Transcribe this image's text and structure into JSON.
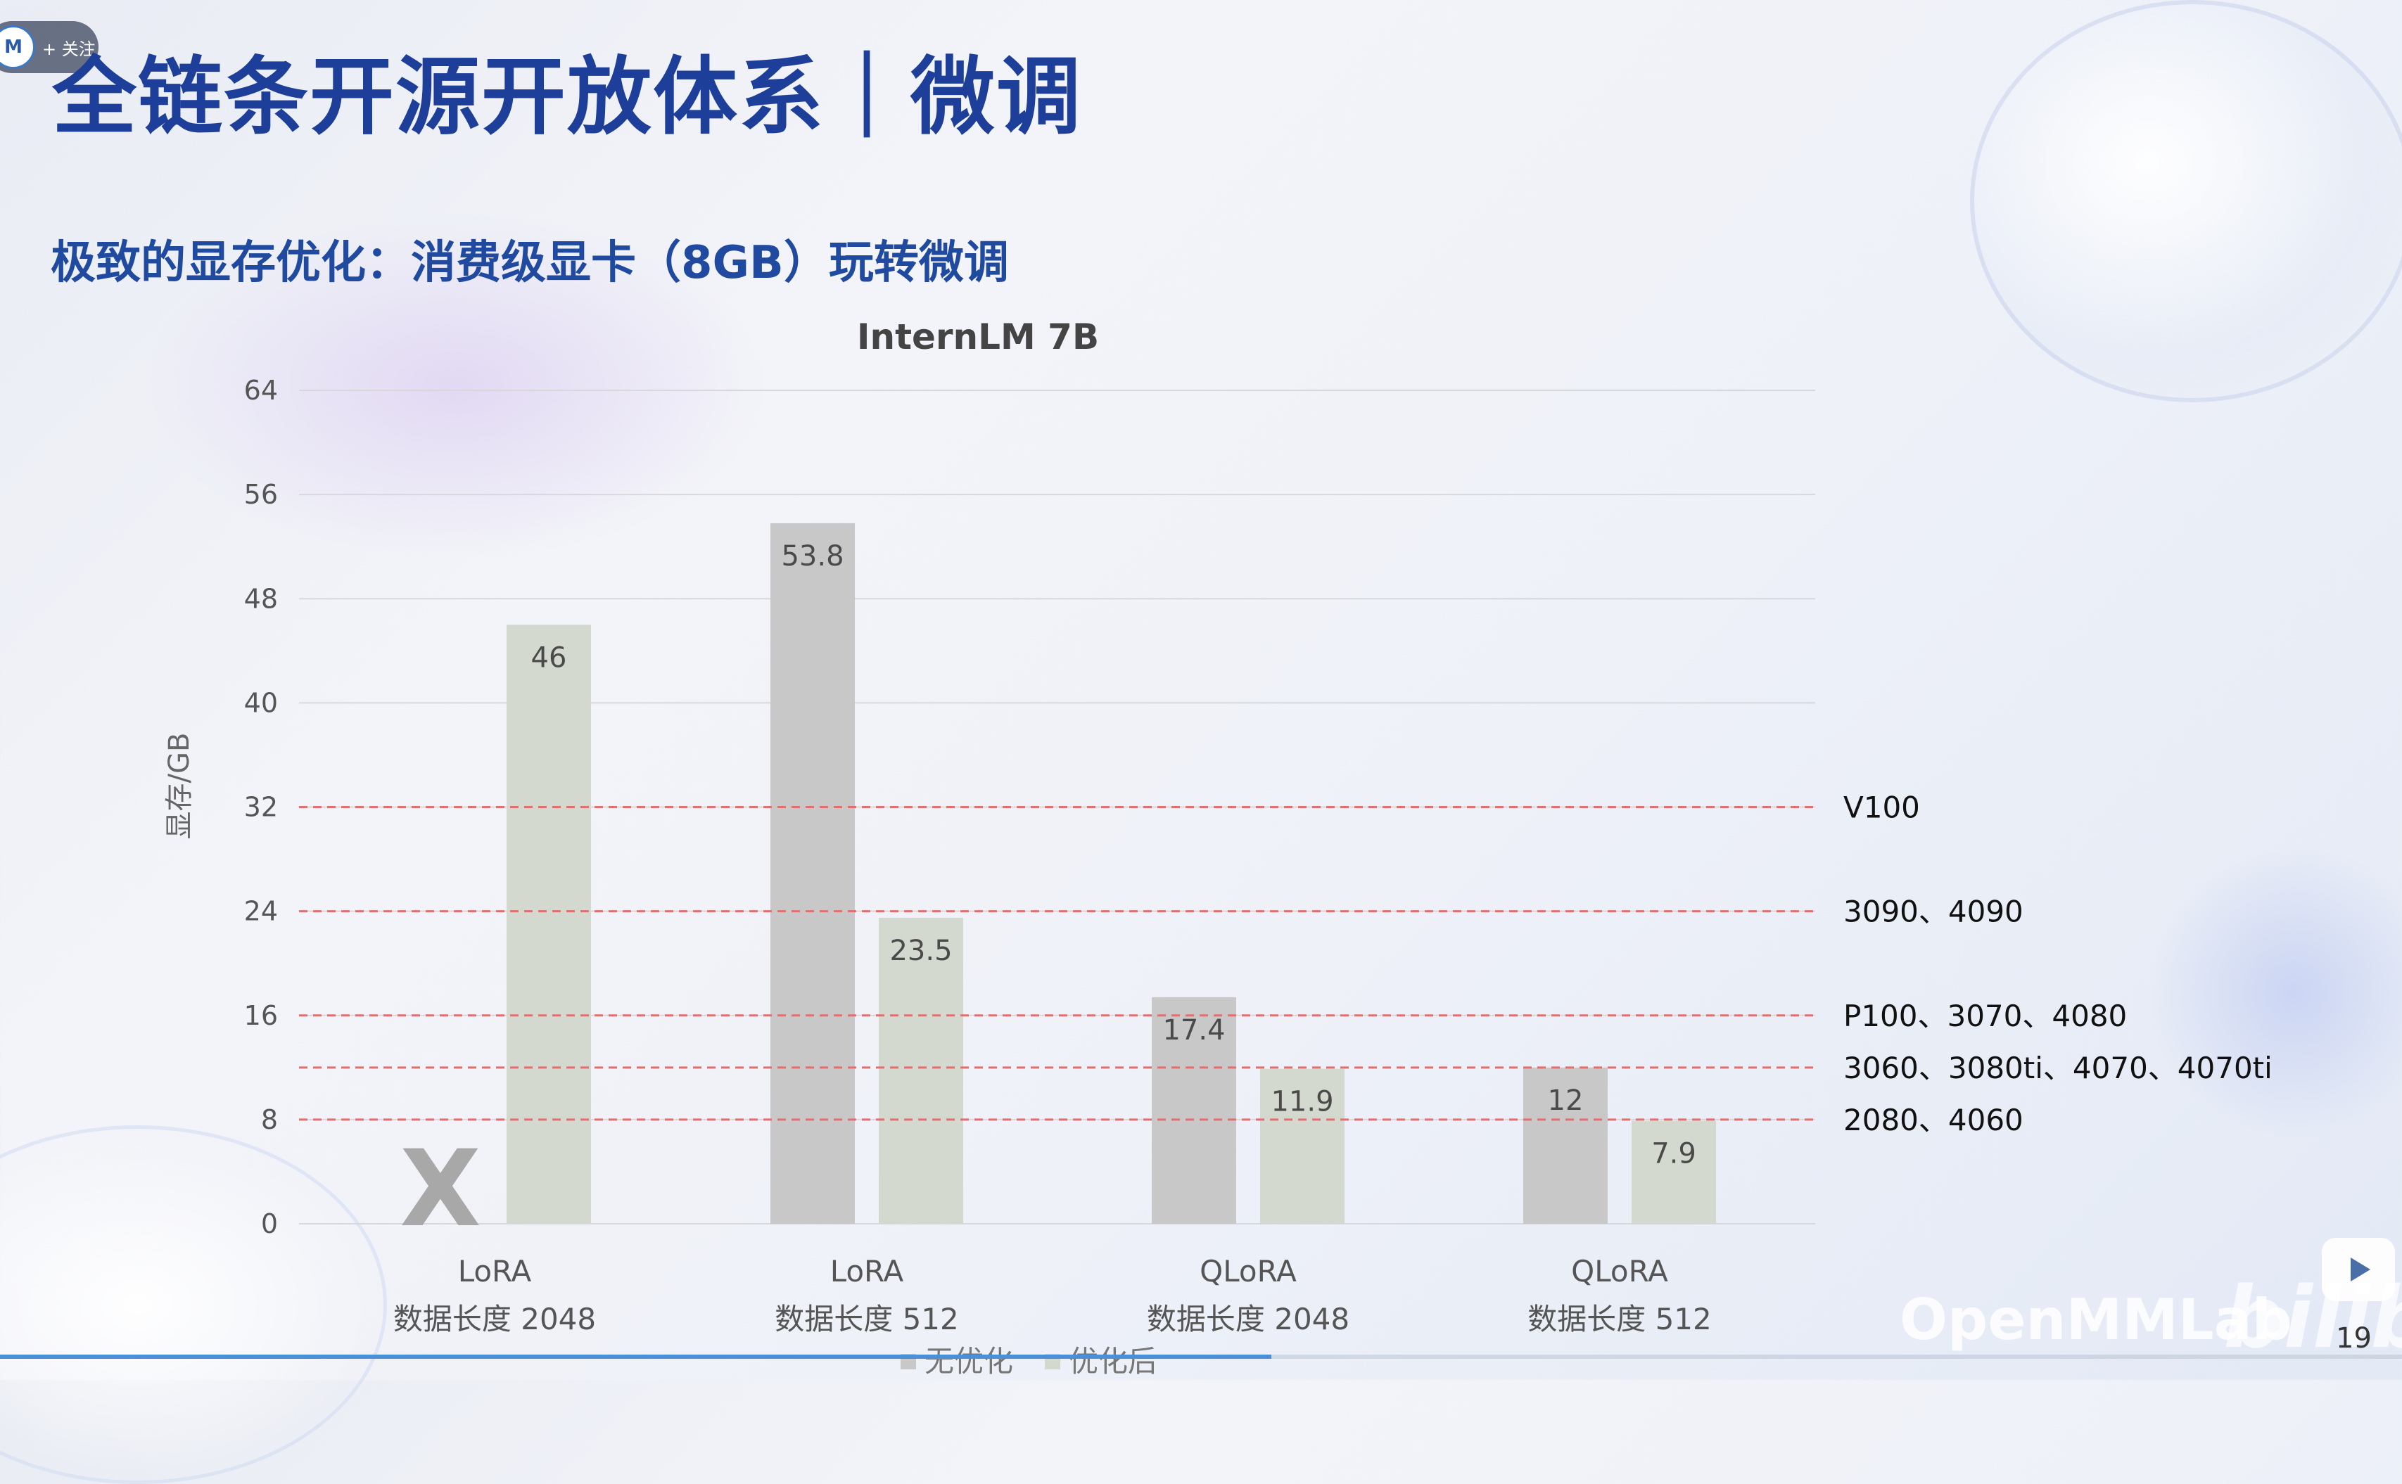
{
  "header": {
    "follow_avatar": "M",
    "follow_text": "+ 关注",
    "title": "全链条开源开放体系｜微调",
    "subtitle": "极致的显存优化：消费级显卡（8GB）玩转微调"
  },
  "chart_data": {
    "type": "bar",
    "title": "InternLM 7B",
    "ylabel": "显存/GB",
    "xlabel": "",
    "ylim": [
      0,
      64
    ],
    "yticks": [
      0,
      8,
      16,
      24,
      32,
      40,
      48,
      56,
      64
    ],
    "categories": [
      {
        "line1": "LoRA",
        "line2": "数据长度 2048"
      },
      {
        "line1": "LoRA",
        "line2": "数据长度 512"
      },
      {
        "line1": "QLoRA",
        "line2": "数据长度 2048"
      },
      {
        "line1": "QLoRA",
        "line2": "数据长度 512"
      }
    ],
    "series": [
      {
        "name": "无优化",
        "color": "#c8c8c8",
        "values": [
          null,
          53.8,
          17.4,
          12
        ]
      },
      {
        "name": "优化后",
        "color": "#d4d9cf",
        "values": [
          46,
          23.5,
          11.9,
          7.9
        ]
      }
    ],
    "missing_marker": "X",
    "reference_lines": [
      {
        "value": 32,
        "label": "V100"
      },
      {
        "value": 24,
        "label": "3090、4090"
      },
      {
        "value": 16,
        "label": "P100、3070、4080"
      },
      {
        "value": 12,
        "label": "3060、3080ti、4070、4070ti"
      },
      {
        "value": 8,
        "label": "2080、4060"
      }
    ],
    "reference_line_color": "#e07070",
    "grid": true,
    "legend_position": "bottom"
  },
  "footer": {
    "watermark": "OpenMMLab",
    "bili_logo": "bilibili",
    "page_number": "19",
    "progress": 0.54,
    "progress_color": "#4a90d9"
  }
}
